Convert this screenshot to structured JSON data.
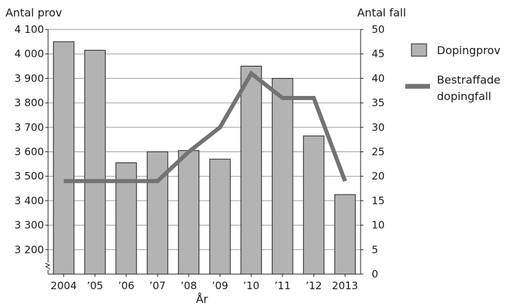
{
  "chart_data": {
    "type": "bar",
    "left_axis_title": "Antal prov",
    "right_axis_title": "Antal fall",
    "xlabel": "År",
    "categories": [
      "2004",
      "’05",
      "’06",
      "’07",
      "’08",
      "’09",
      "’10",
      "’11",
      "’12",
      "2013"
    ],
    "left_ticks": [
      "4 100",
      "4 000",
      "3 900",
      "3 800",
      "3 700",
      "3 600",
      "3 500",
      "3 400",
      "3 300",
      "3 200"
    ],
    "right_ticks": [
      "50",
      "45",
      "40",
      "35",
      "30",
      "25",
      "20",
      "15",
      "10",
      "5",
      "0"
    ],
    "left_ylim": [
      3100,
      4100
    ],
    "left_axis_break": true,
    "right_ylim": [
      0,
      50
    ],
    "grid": "horizontal",
    "legend_position": "right",
    "series": [
      {
        "name": "Dopingprov",
        "type": "bar",
        "axis": "left",
        "values": [
          4050,
          4015,
          3555,
          3600,
          3605,
          3570,
          3950,
          3900,
          3665,
          3425
        ],
        "color": "#b3b3b3",
        "stroke": "#1a1a1a"
      },
      {
        "name": "Bestraffade dopingfall",
        "legend_lines": [
          "Bestraffade",
          "dopingfall"
        ],
        "type": "line",
        "axis": "right",
        "values": [
          19,
          19,
          19,
          19,
          25,
          30,
          41,
          36,
          36,
          19
        ],
        "color": "#737373"
      }
    ]
  }
}
